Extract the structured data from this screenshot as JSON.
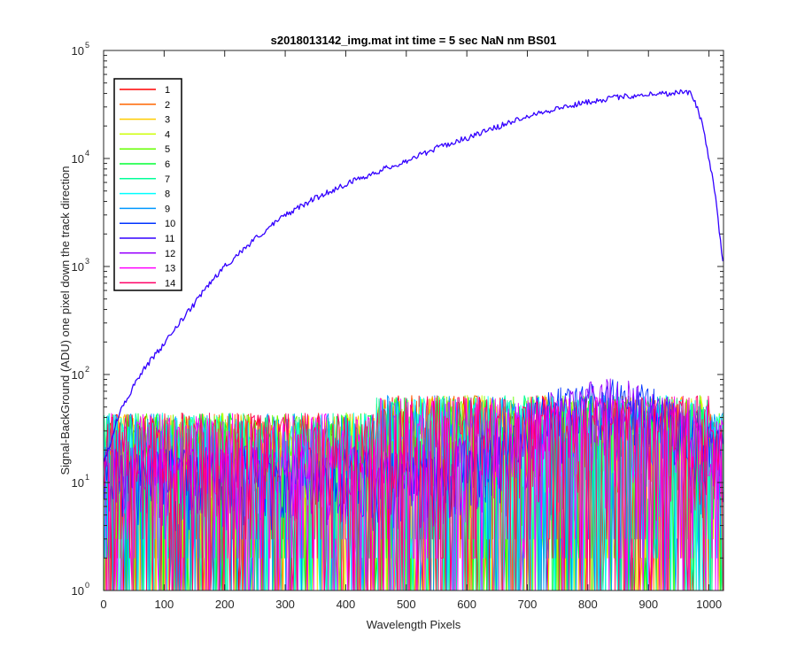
{
  "chart_data": {
    "type": "line",
    "title": "s2018013142_img.mat int time = 5 sec  NaN nm BS01",
    "xlabel": "Wavelength Pixels",
    "ylabel": "Signal-BackGround (ADU) one pixel down the track direction",
    "xlim": [
      0,
      1024
    ],
    "ylim": [
      1,
      100000
    ],
    "yscale": "log",
    "x_ticks": [
      0,
      100,
      200,
      300,
      400,
      500,
      600,
      700,
      800,
      900,
      1000
    ],
    "y_ticks": [
      1,
      10,
      100,
      1000,
      10000,
      100000
    ],
    "y_tick_labels": [
      {
        "base": "10",
        "exp": "0"
      },
      {
        "base": "10",
        "exp": "1"
      },
      {
        "base": "10",
        "exp": "2"
      },
      {
        "base": "10",
        "exp": "3"
      },
      {
        "base": "10",
        "exp": "4"
      },
      {
        "base": "10",
        "exp": "5"
      }
    ],
    "grid": false,
    "legend_position": "top-left",
    "series": [
      {
        "name": "1",
        "color": "#ff0000",
        "kind": "noise"
      },
      {
        "name": "2",
        "color": "#ff6600",
        "kind": "noise"
      },
      {
        "name": "3",
        "color": "#ffcc00",
        "kind": "noise"
      },
      {
        "name": "4",
        "color": "#ccff00",
        "kind": "noise"
      },
      {
        "name": "5",
        "color": "#66ff00",
        "kind": "noise"
      },
      {
        "name": "6",
        "color": "#00ff33",
        "kind": "noise"
      },
      {
        "name": "7",
        "color": "#00ff99",
        "kind": "noise"
      },
      {
        "name": "8",
        "color": "#00ffff",
        "kind": "noise"
      },
      {
        "name": "9",
        "color": "#0099ff",
        "kind": "noise"
      },
      {
        "name": "10",
        "color": "#0033ff",
        "kind": "hump"
      },
      {
        "name": "11",
        "color": "#3300ff",
        "kind": "signal",
        "x": [
          0,
          10,
          20,
          30,
          40,
          50,
          60,
          80,
          100,
          125,
          150,
          175,
          200,
          250,
          300,
          350,
          400,
          450,
          500,
          550,
          600,
          650,
          700,
          750,
          800,
          850,
          900,
          930,
          950,
          960,
          970,
          980,
          990,
          1000,
          1010,
          1020,
          1024
        ],
        "y": [
          15,
          22,
          35,
          50,
          62,
          80,
          100,
          140,
          190,
          300,
          450,
          700,
          1000,
          1800,
          3000,
          4300,
          5800,
          7500,
          9500,
          12500,
          15500,
          19500,
          25000,
          29000,
          33500,
          37000,
          39500,
          40000,
          41000,
          42000,
          40000,
          30000,
          20000,
          10000,
          5000,
          1500,
          1000
        ]
      },
      {
        "name": "12",
        "color": "#9900ff",
        "kind": "hump"
      },
      {
        "name": "13",
        "color": "#ff00ff",
        "kind": "noise"
      },
      {
        "name": "14",
        "color": "#ff0066",
        "kind": "noise"
      }
    ]
  }
}
